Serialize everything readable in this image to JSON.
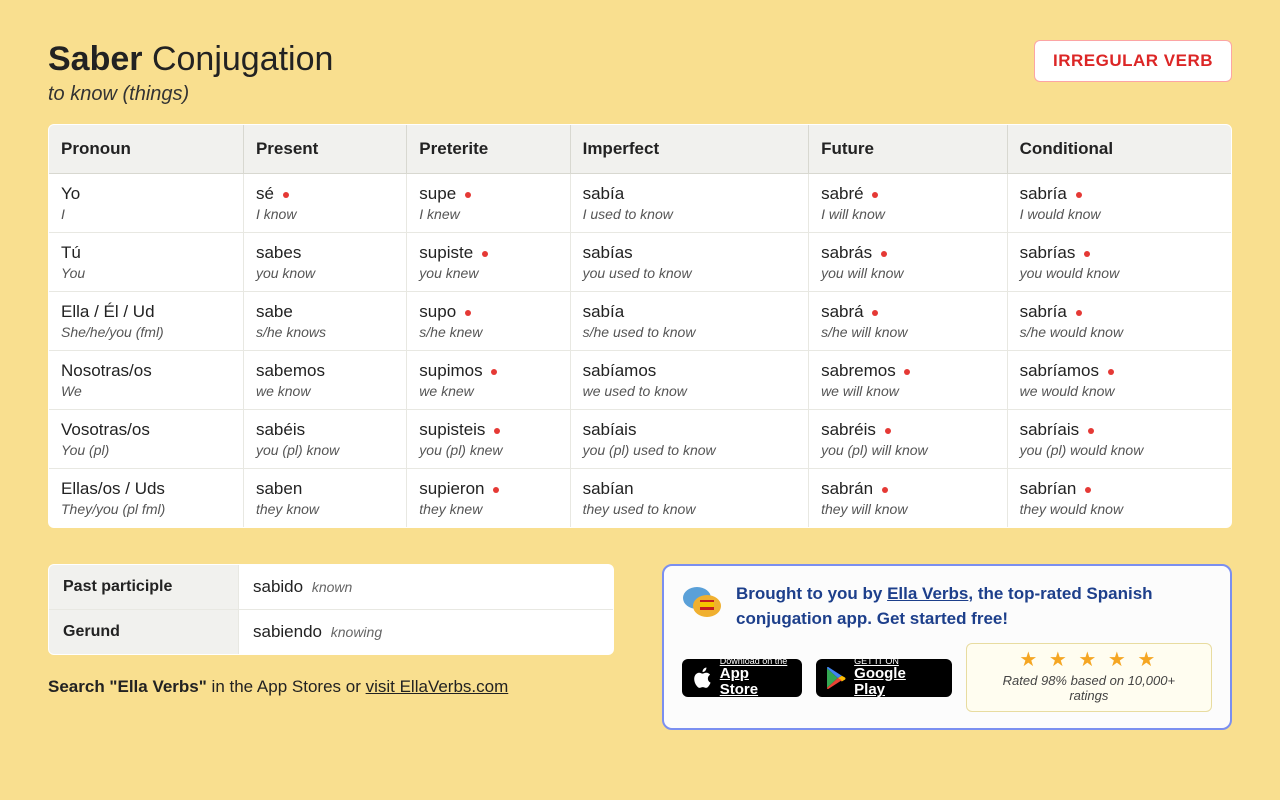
{
  "header": {
    "verb": "Saber",
    "suffix": "Conjugation",
    "subtitle": "to know (things)",
    "badge": "IRREGULAR VERB"
  },
  "table": {
    "columns": [
      "Pronoun",
      "Present",
      "Preterite",
      "Imperfect",
      "Future",
      "Conditional"
    ],
    "rows": [
      {
        "pronoun": {
          "main": "Yo",
          "sub": "I"
        },
        "cells": [
          {
            "main": "sé",
            "sub": "I know",
            "irr": true
          },
          {
            "main": "supe",
            "sub": "I knew",
            "irr": true
          },
          {
            "main": "sabía",
            "sub": "I used to know",
            "irr": false
          },
          {
            "main": "sabré",
            "sub": "I will know",
            "irr": true
          },
          {
            "main": "sabría",
            "sub": "I would know",
            "irr": true
          }
        ]
      },
      {
        "pronoun": {
          "main": "Tú",
          "sub": "You"
        },
        "cells": [
          {
            "main": "sabes",
            "sub": "you know",
            "irr": false
          },
          {
            "main": "supiste",
            "sub": "you knew",
            "irr": true
          },
          {
            "main": "sabías",
            "sub": "you used to know",
            "irr": false
          },
          {
            "main": "sabrás",
            "sub": "you will know",
            "irr": true
          },
          {
            "main": "sabrías",
            "sub": "you would know",
            "irr": true
          }
        ]
      },
      {
        "pronoun": {
          "main": "Ella / Él / Ud",
          "sub": "She/he/you (fml)"
        },
        "cells": [
          {
            "main": "sabe",
            "sub": "s/he knows",
            "irr": false
          },
          {
            "main": "supo",
            "sub": "s/he knew",
            "irr": true
          },
          {
            "main": "sabía",
            "sub": "s/he used to know",
            "irr": false
          },
          {
            "main": "sabrá",
            "sub": "s/he will know",
            "irr": true
          },
          {
            "main": "sabría",
            "sub": "s/he would know",
            "irr": true
          }
        ]
      },
      {
        "pronoun": {
          "main": "Nosotras/os",
          "sub": "We"
        },
        "cells": [
          {
            "main": "sabemos",
            "sub": "we know",
            "irr": false
          },
          {
            "main": "supimos",
            "sub": "we knew",
            "irr": true
          },
          {
            "main": "sabíamos",
            "sub": "we used to know",
            "irr": false
          },
          {
            "main": "sabremos",
            "sub": "we will know",
            "irr": true
          },
          {
            "main": "sabríamos",
            "sub": "we would know",
            "irr": true
          }
        ]
      },
      {
        "pronoun": {
          "main": "Vosotras/os",
          "sub": "You (pl)"
        },
        "cells": [
          {
            "main": "sabéis",
            "sub": "you (pl) know",
            "irr": false
          },
          {
            "main": "supisteis",
            "sub": "you (pl) knew",
            "irr": true
          },
          {
            "main": "sabíais",
            "sub": "you (pl) used to know",
            "irr": false
          },
          {
            "main": "sabréis",
            "sub": "you (pl) will know",
            "irr": true
          },
          {
            "main": "sabríais",
            "sub": "you (pl) would know",
            "irr": true
          }
        ]
      },
      {
        "pronoun": {
          "main": "Ellas/os / Uds",
          "sub": "They/you (pl fml)"
        },
        "cells": [
          {
            "main": "saben",
            "sub": "they know",
            "irr": false
          },
          {
            "main": "supieron",
            "sub": "they knew",
            "irr": true
          },
          {
            "main": "sabían",
            "sub": "they used to know",
            "irr": false
          },
          {
            "main": "sabrán",
            "sub": "they will know",
            "irr": true
          },
          {
            "main": "sabrían",
            "sub": "they would know",
            "irr": true
          }
        ]
      }
    ]
  },
  "forms": {
    "past_participle": {
      "label": "Past participle",
      "value": "sabido",
      "gloss": "known"
    },
    "gerund": {
      "label": "Gerund",
      "value": "sabiendo",
      "gloss": "knowing"
    }
  },
  "search_line": {
    "prefix": "Search \"Ella Verbs\"",
    "mid": " in the App Stores or ",
    "link": "visit EllaVerbs.com"
  },
  "promo": {
    "text_prefix": "Brought to you by ",
    "link": "Ella Verbs",
    "text_suffix": ", the top-rated Spanish conjugation app. Get started free!",
    "appstore": {
      "small": "Download on the",
      "big": "App Store"
    },
    "play": {
      "small": "GET IT ON",
      "big": "Google Play"
    },
    "rating": {
      "stars": "★ ★ ★ ★ ★",
      "text": "Rated 98% based on 10,000+ ratings"
    }
  }
}
